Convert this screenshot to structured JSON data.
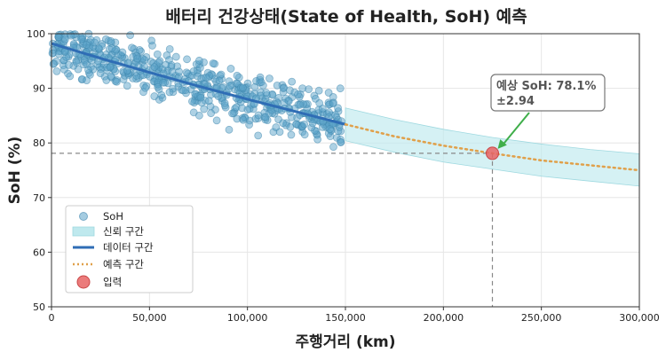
{
  "chart_data": {
    "type": "scatter",
    "title": "배터리 건강상태(State of Health, SoH) 예측",
    "xlabel": "주행거리 (km)",
    "ylabel": "SoH (%)",
    "xlim": [
      0,
      300000
    ],
    "ylim": [
      50,
      100
    ],
    "x_ticks": [
      0,
      50000,
      100000,
      150000,
      200000,
      250000,
      300000
    ],
    "x_tick_labels": [
      "0",
      "50,000",
      "100,000",
      "150,000",
      "200,000",
      "250,000",
      "300,000"
    ],
    "y_ticks": [
      50,
      60,
      70,
      80,
      90,
      100
    ],
    "y_tick_labels": [
      "50",
      "60",
      "70",
      "80",
      "90",
      "100"
    ],
    "grid": true,
    "legend_position": "lower-left",
    "legend": [
      {
        "key": "scatter",
        "label": "SoH"
      },
      {
        "key": "band",
        "label": "신뢰 구간"
      },
      {
        "key": "fit",
        "label": "데이터 구간"
      },
      {
        "key": "pred",
        "label": "예측 구간"
      },
      {
        "key": "input",
        "label": "입력"
      }
    ],
    "scatter": {
      "name": "SoH",
      "x_range": [
        0,
        148000
      ],
      "count": 600,
      "noise_sd": 2.3
    },
    "fit_curve": {
      "name": "데이터 구간",
      "x": [
        0,
        25000,
        50000,
        75000,
        100000,
        125000,
        150000
      ],
      "y": [
        98.2,
        95.5,
        92.9,
        90.4,
        88.0,
        85.7,
        83.4
      ]
    },
    "prediction_curve": {
      "name": "예측 구간",
      "x": [
        150000,
        175000,
        200000,
        225000,
        250000,
        275000,
        300000
      ],
      "y": [
        83.4,
        81.2,
        79.5,
        78.1,
        76.8,
        75.9,
        75.0
      ]
    },
    "confidence_band": {
      "name": "신뢰 구간",
      "x": [
        150000,
        175000,
        200000,
        225000,
        250000,
        275000,
        300000
      ],
      "upper": [
        86.4,
        84.3,
        82.5,
        81.0,
        79.8,
        78.8,
        78.0
      ],
      "lower": [
        80.4,
        78.3,
        76.5,
        75.2,
        73.9,
        73.0,
        72.1
      ]
    },
    "input_point": {
      "name": "입력",
      "x": 225000,
      "y": 78.1
    },
    "annotation": {
      "line1": "예상 SoH: 78.1%",
      "line2": "±2.94",
      "anchor_x": 225000,
      "anchor_y": 78.1
    },
    "colors": {
      "scatter": "#5ba3c9",
      "fit": "#2f6db5",
      "pred": "#e0a04a",
      "band": "#bfe9ee",
      "input": "#e86464",
      "arrow": "#3fae4a",
      "guide": "#888888"
    }
  }
}
